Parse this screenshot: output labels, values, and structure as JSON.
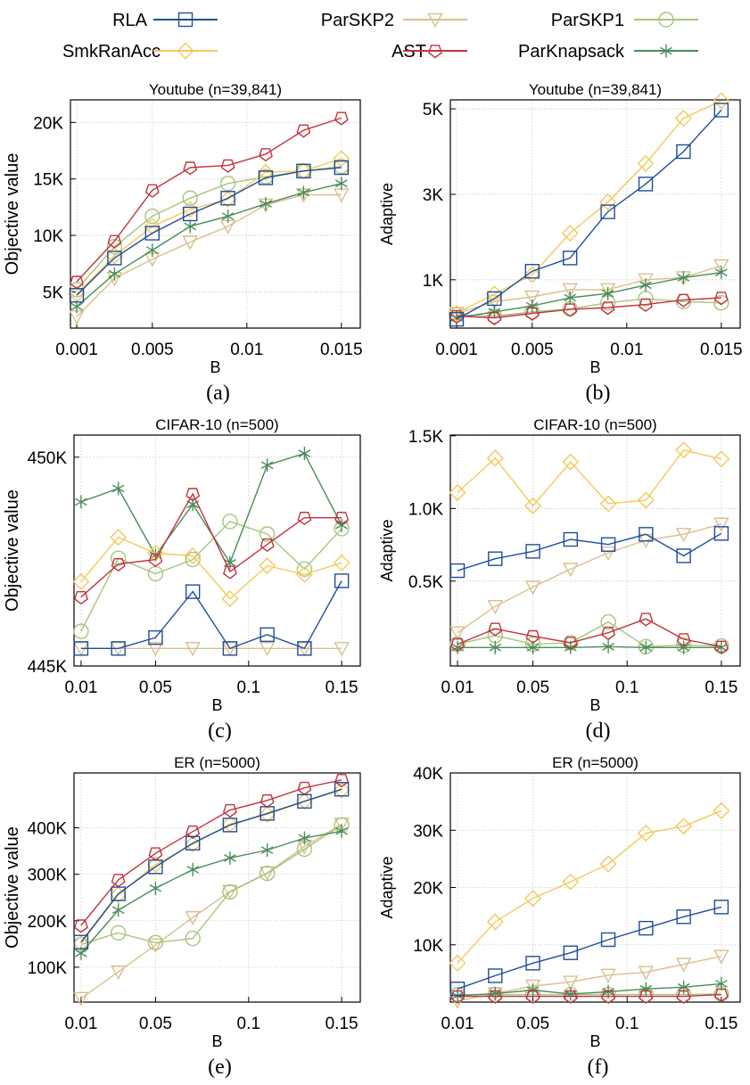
{
  "legend": {
    "placement": "top",
    "entries": [
      {
        "name": "RLA",
        "marker": "square",
        "color": "#1f4e9c"
      },
      {
        "name": "ParSKP2",
        "marker": "triangle-down",
        "color": "#d8c08c"
      },
      {
        "name": "ParSKP1",
        "marker": "circle",
        "color": "#a9c47c"
      },
      {
        "name": "SmkRanAcc",
        "marker": "diamond",
        "color": "#f5c85a"
      },
      {
        "name": "AST",
        "marker": "pentagon",
        "color": "#c0343f"
      },
      {
        "name": "ParKnapsack",
        "marker": "asterisk",
        "color": "#4a8c5a"
      }
    ]
  },
  "chart_data": [
    {
      "type": "line",
      "caption": "(a)",
      "title": "Youtube (n=39,841)",
      "xlabel": "B",
      "ylabel": "Objective value",
      "grid": true,
      "x": [
        0.001,
        0.003,
        0.005,
        0.007,
        0.009,
        0.011,
        0.013,
        0.015
      ],
      "xlim": [
        0.00067,
        0.016
      ],
      "ylim": [
        1800,
        22000
      ],
      "xticks": [
        0.001,
        0.005,
        0.01,
        0.015
      ],
      "xtick_labels": [
        "0.001",
        "0.005",
        "0.01",
        "0.015"
      ],
      "yticks": [
        5000,
        10000,
        15000,
        20000
      ],
      "ytick_labels": [
        "5K",
        "10K",
        "15K",
        "20K"
      ],
      "series": [
        {
          "name": "ParSKP2",
          "values": [
            2800,
            6200,
            7900,
            9400,
            10800,
            12700,
            13600,
            13600
          ]
        },
        {
          "name": "ParSKP1",
          "values": [
            5200,
            9000,
            11700,
            13300,
            14600,
            15200,
            15700,
            16100
          ]
        },
        {
          "name": "ParKnapsack",
          "values": [
            3700,
            6600,
            8700,
            10800,
            11700,
            12800,
            13800,
            14600
          ]
        },
        {
          "name": "SmkRanAcc",
          "values": [
            4800,
            8200,
            10800,
            12300,
            13200,
            15600,
            15700,
            16800
          ]
        },
        {
          "name": "AST",
          "values": [
            5900,
            9500,
            14000,
            16000,
            16200,
            17200,
            19300,
            20400
          ]
        },
        {
          "name": "RLA",
          "values": [
            4700,
            8000,
            10200,
            11900,
            13300,
            15100,
            15700,
            16000
          ]
        }
      ]
    },
    {
      "type": "line",
      "caption": "(b)",
      "title": "Youtube (n=39,841)",
      "xlabel": "B",
      "ylabel": "Adaptive",
      "grid": true,
      "x": [
        0.001,
        0.003,
        0.005,
        0.007,
        0.009,
        0.011,
        0.013,
        0.015
      ],
      "xlim": [
        0.00067,
        0.016
      ],
      "ylim": [
        -130,
        5210
      ],
      "xticks": [
        0.001,
        0.005,
        0.01,
        0.015
      ],
      "xtick_labels": [
        "0.001",
        "0.005",
        "0.01",
        "0.015"
      ],
      "yticks": [
        1000,
        3000,
        5000
      ],
      "ytick_labels": [
        "1K",
        "3K",
        "5K"
      ],
      "series": [
        {
          "name": "ParSKP2",
          "values": [
            215,
            490,
            600,
            770,
            770,
            1000,
            1050,
            1330
          ]
        },
        {
          "name": "ParSKP1",
          "values": [
            180,
            150,
            250,
            320,
            460,
            560,
            490,
            460
          ]
        },
        {
          "name": "ParKnapsack",
          "values": [
            110,
            250,
            390,
            580,
            680,
            875,
            1050,
            1170
          ]
        },
        {
          "name": "SmkRanAcc",
          "values": [
            215,
            667,
            1118,
            2090,
            2820,
            3720,
            4780,
            5190
          ]
        },
        {
          "name": "AST",
          "values": [
            150,
            110,
            215,
            305,
            350,
            420,
            530,
            580
          ]
        },
        {
          "name": "RLA",
          "values": [
            76,
            560,
            1200,
            1510,
            2590,
            3240,
            4000,
            4970
          ]
        }
      ]
    },
    {
      "type": "line",
      "caption": "(c)",
      "title": "CIFAR-10 (n=500)",
      "xlabel": "B",
      "ylabel": "Objective value",
      "grid": true,
      "x": [
        0.01,
        0.03,
        0.05,
        0.07,
        0.09,
        0.11,
        0.13,
        0.15
      ],
      "xlim": [
        0.0062,
        0.16
      ],
      "ylim": [
        445000,
        450530
      ],
      "xticks": [
        0.01,
        0.05,
        0.1,
        0.15
      ],
      "xtick_labels": [
        "0.01",
        "0.05",
        "0.1",
        "0.15"
      ],
      "yticks": [
        445000,
        450000
      ],
      "ytick_labels": [
        "445K",
        "450K"
      ],
      "series": [
        {
          "name": "ParSKP2",
          "values": [
            445420,
            445420,
            445420,
            445420,
            445420,
            445420,
            445420,
            445420
          ]
        },
        {
          "name": "ParSKP1",
          "values": [
            445830,
            447580,
            447210,
            447550,
            448460,
            448160,
            447320,
            448290
          ]
        },
        {
          "name": "ParKnapsack",
          "values": [
            448930,
            449250,
            447650,
            448870,
            447470,
            449810,
            450090,
            448370
          ]
        },
        {
          "name": "SmkRanAcc",
          "values": [
            447020,
            448080,
            447700,
            447640,
            446610,
            447400,
            447190,
            447470
          ]
        },
        {
          "name": "AST",
          "values": [
            446650,
            447440,
            447550,
            449120,
            447260,
            447910,
            448550,
            448550
          ]
        },
        {
          "name": "RLA",
          "values": [
            445420,
            445420,
            445680,
            446780,
            445420,
            445750,
            445420,
            447040
          ]
        }
      ]
    },
    {
      "type": "line",
      "caption": "(d)",
      "title": "CIFAR-10 (n=500)",
      "xlabel": "B",
      "ylabel": "Adaptive",
      "grid": true,
      "x": [
        0.01,
        0.03,
        0.05,
        0.07,
        0.09,
        0.11,
        0.13,
        0.15
      ],
      "xlim": [
        0.0062,
        0.16
      ],
      "ylim": [
        -84,
        1505
      ],
      "xticks": [
        0.01,
        0.05,
        0.1,
        0.15
      ],
      "xtick_labels": [
        "0.01",
        "0.05",
        "0.1",
        "0.15"
      ],
      "yticks": [
        500,
        1000,
        1500
      ],
      "ytick_labels": [
        "0.5K",
        "1.0K",
        "1.5K"
      ],
      "series": [
        {
          "name": "ParSKP2",
          "values": [
            145,
            326,
            459,
            582,
            695,
            781,
            822,
            893
          ]
        },
        {
          "name": "ParSKP1",
          "values": [
            66,
            125,
            66,
            76,
            219,
            49,
            59,
            53
          ]
        },
        {
          "name": "ParKnapsack",
          "values": [
            43,
            43,
            43,
            43,
            49,
            43,
            43,
            43
          ]
        },
        {
          "name": "SmkRanAcc",
          "values": [
            1109,
            1346,
            1018,
            1320,
            1033,
            1057,
            1402,
            1340
          ]
        },
        {
          "name": "AST",
          "values": [
            66,
            172,
            121,
            76,
            145,
            240,
            100,
            49
          ]
        },
        {
          "name": "RLA",
          "values": [
            572,
            654,
            705,
            787,
            752,
            822,
            674,
            828
          ]
        }
      ]
    },
    {
      "type": "line",
      "caption": "(e)",
      "title": "ER (n=5000)",
      "xlabel": "B",
      "ylabel": "Objective value",
      "grid": true,
      "x": [
        0.01,
        0.03,
        0.05,
        0.07,
        0.09,
        0.11,
        0.13,
        0.15
      ],
      "xlim": [
        0.0062,
        0.16
      ],
      "ylim": [
        25000,
        518000
      ],
      "xticks": [
        0.01,
        0.05,
        0.1,
        0.15
      ],
      "xtick_labels": [
        "0.01",
        "0.05",
        "0.1",
        "0.15"
      ],
      "yticks": [
        100000,
        200000,
        300000,
        400000
      ],
      "ytick_labels": [
        "100K",
        "200K",
        "300K",
        "400K"
      ],
      "series": [
        {
          "name": "ParSKP2",
          "values": [
            33000,
            90000,
            148000,
            207000,
            263000,
            303000,
            360000,
            408000
          ]
        },
        {
          "name": "ParSKP1",
          "values": [
            149000,
            174000,
            153000,
            162000,
            262000,
            302000,
            354000,
            406000
          ]
        },
        {
          "name": "ParKnapsack",
          "values": [
            130000,
            223000,
            270000,
            310000,
            335000,
            352000,
            378000,
            393000
          ]
        },
        {
          "name": "SmkRanAcc",
          "values": [
            151000,
            256000,
            321000,
            365000,
            408000,
            429000,
            457000,
            481000
          ]
        },
        {
          "name": "AST",
          "values": [
            190000,
            288000,
            345000,
            392000,
            438000,
            459000,
            486000,
            503000
          ]
        },
        {
          "name": "RLA",
          "values": [
            154000,
            258000,
            316000,
            367000,
            406000,
            431000,
            457000,
            483000
          ]
        }
      ]
    },
    {
      "type": "line",
      "caption": "(f)",
      "title": "ER (n=5000)",
      "xlabel": "B",
      "ylabel": "Adaptive",
      "grid": true,
      "x": [
        0.01,
        0.03,
        0.05,
        0.07,
        0.09,
        0.11,
        0.13,
        0.15
      ],
      "xlim": [
        0.0062,
        0.16
      ],
      "ylim": [
        0,
        40000
      ],
      "xticks": [
        0.01,
        0.05,
        0.1,
        0.15
      ],
      "xtick_labels": [
        "0.01",
        "0.05",
        "0.1",
        "0.15"
      ],
      "yticks": [
        10000,
        20000,
        30000,
        40000
      ],
      "ytick_labels": [
        "10K",
        "20K",
        "30K",
        "40K"
      ],
      "series": [
        {
          "name": "ParSKP2",
          "values": [
            200,
            1500,
            2800,
            3500,
            4700,
            5200,
            6600,
            8000
          ]
        },
        {
          "name": "ParSKP1",
          "values": [
            1300,
            1300,
            1300,
            1300,
            1300,
            1300,
            1300,
            1400
          ]
        },
        {
          "name": "ParKnapsack",
          "values": [
            1100,
            1500,
            2100,
            1400,
            1800,
            2300,
            2600,
            3200
          ]
        },
        {
          "name": "SmkRanAcc",
          "values": [
            6800,
            14000,
            18100,
            21000,
            24100,
            29500,
            30700,
            33400
          ]
        },
        {
          "name": "AST",
          "values": [
            1000,
            1000,
            1000,
            1000,
            1000,
            1000,
            1000,
            1300
          ]
        },
        {
          "name": "RLA",
          "values": [
            2300,
            4600,
            6800,
            8600,
            10900,
            12900,
            14900,
            16600
          ]
        }
      ]
    }
  ]
}
